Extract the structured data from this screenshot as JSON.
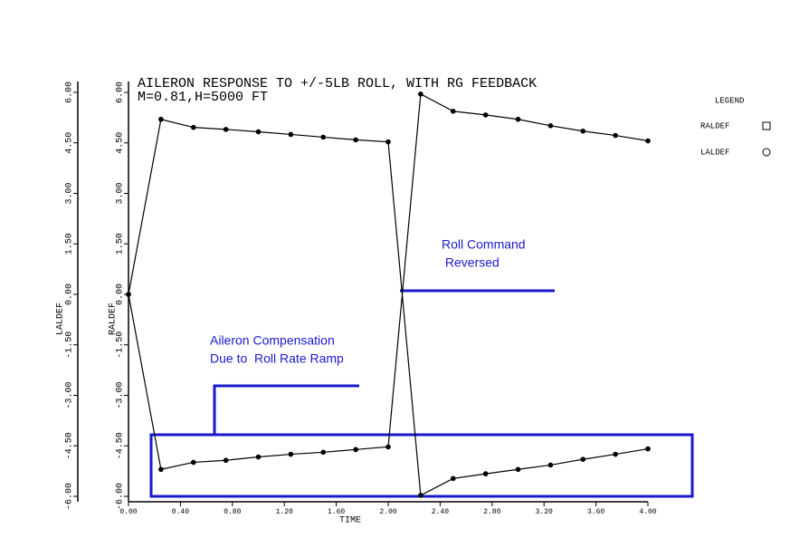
{
  "chart_data": {
    "type": "line",
    "title": "AILERON RESPONSE TO +/-5LB ROLL, WITH RG FEEDBACK",
    "subtitle": "M=0.81,H=5000 FT",
    "x_label": "TIME",
    "y_label": "RALDEF",
    "y2_label": "LALDEF",
    "legend_title": "LEGEND",
    "x": [
      0,
      0.25,
      0.5,
      0.75,
      1.0,
      1.25,
      1.5,
      1.75,
      2.0,
      2.25,
      2.5,
      2.75,
      3.0,
      3.25,
      3.5,
      3.75,
      4.0
    ],
    "series": [
      {
        "name": "RALDEF",
        "color": "#000000",
        "marker": "square",
        "values": [
          0,
          5.2,
          4.96,
          4.9,
          4.83,
          4.75,
          4.67,
          4.59,
          4.53,
          -5.97,
          -5.47,
          -5.33,
          -5.2,
          -5.07,
          -4.9,
          -4.75,
          -4.59
        ]
      },
      {
        "name": "LALDEF",
        "color": "#000000",
        "marker": "circle",
        "values": [
          0,
          -5.2,
          -4.99,
          -4.93,
          -4.83,
          -4.75,
          -4.69,
          -4.61,
          -4.53,
          5.95,
          5.44,
          5.33,
          5.2,
          5.01,
          4.85,
          4.72,
          4.56
        ]
      }
    ],
    "xlim": [
      0,
      4
    ],
    "xticks": [
      {
        "value": 0,
        "label": "0.00"
      },
      {
        "value": 0.4,
        "label": "0.40"
      },
      {
        "value": 0.8,
        "label": "0.80"
      },
      {
        "value": 1.2,
        "label": "1.20"
      },
      {
        "value": 1.6,
        "label": "1.60"
      },
      {
        "value": 2.0,
        "label": "2.00"
      },
      {
        "value": 2.4,
        "label": "2.40"
      },
      {
        "value": 2.8,
        "label": "2.80"
      },
      {
        "value": 3.2,
        "label": "3.20"
      },
      {
        "value": 3.6,
        "label": "3.60"
      },
      {
        "value": 4.0,
        "label": "4.00"
      }
    ],
    "ylim": [
      -6,
      6
    ],
    "yticks": [
      {
        "value": -6,
        "label": "-6.00"
      },
      {
        "value": -4.5,
        "label": "-4.50"
      },
      {
        "value": -3,
        "label": "-3.00"
      },
      {
        "value": -1.5,
        "label": "-1.50"
      },
      {
        "value": 0,
        "label": "0.00"
      },
      {
        "value": 1.5,
        "label": "1.50"
      },
      {
        "value": 3,
        "label": "3.00"
      },
      {
        "value": 4.5,
        "label": "4.50"
      },
      {
        "value": 6,
        "label": "6.00"
      }
    ],
    "annotations": [
      [
        "Roll Command",
        " Reversed"
      ],
      [
        "Aileron Compensation",
        "Due to  Roll Rate Ramp"
      ]
    ]
  }
}
